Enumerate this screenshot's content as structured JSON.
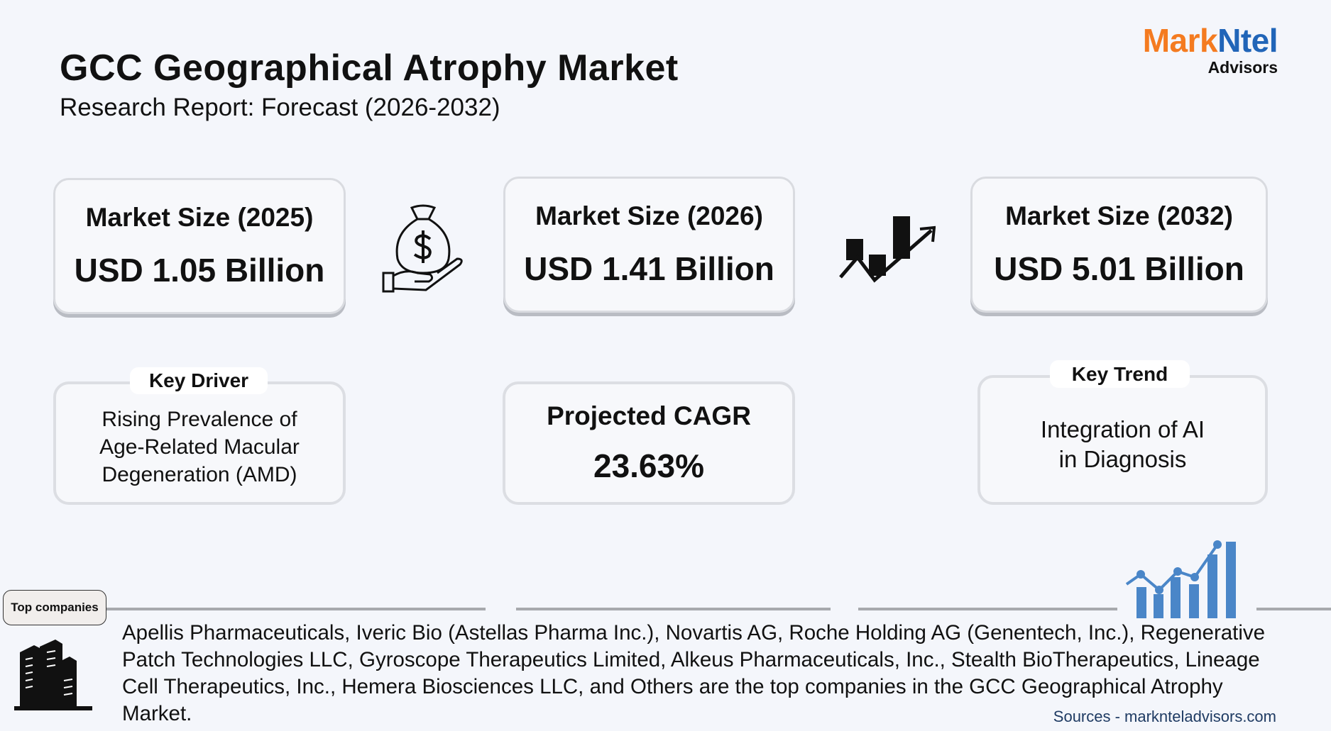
{
  "header": {
    "title": "GCC Geographical Atrophy Market",
    "subtitle": "Research Report: Forecast (2026-2032)"
  },
  "logo": {
    "part1": "Mark",
    "part2": "Ntel",
    "part3": "Advisors",
    "colors": {
      "orange": "#f47b20",
      "blue": "#2165b8"
    }
  },
  "cards": [
    {
      "label": "Market Size (2025)",
      "value": "USD 1.05 Billion"
    },
    {
      "label": "Market Size (2026)",
      "value": "USD 1.41 Billion"
    },
    {
      "label": "Market Size (2032)",
      "value": "USD 5.01 Billion"
    }
  ],
  "key_driver": {
    "tag": "Key Driver",
    "lines": [
      "Rising Prevalence of",
      "Age-Related Macular",
      "Degeneration (AMD)"
    ]
  },
  "cagr": {
    "label": "Projected CAGR",
    "value": "23.63%"
  },
  "key_trend": {
    "tag": "Key Trend",
    "lines": [
      "Integration of AI",
      "in Diagnosis"
    ]
  },
  "top_companies": {
    "tag": "Top companies",
    "text": "Apellis Pharmaceuticals, Iveric Bio (Astellas Pharma Inc.), Novartis AG, Roche Holding AG (Genentech, Inc.), Regenerative Patch Technologies LLC, Gyroscope Therapeutics Limited, Alkeus Pharmaceuticals, Inc., Stealth BioTherapeutics, Lineage Cell Therapeutics, Inc., Hemera Biosciences LLC, and Others are the top companies in the GCC Geographical Atrophy Market."
  },
  "sources": "Sources - marknteladvisors.com",
  "icons": [
    "money-bag-hand-icon",
    "trend-up-chart-icon",
    "bar-chart-growth-icon",
    "buildings-icon"
  ]
}
